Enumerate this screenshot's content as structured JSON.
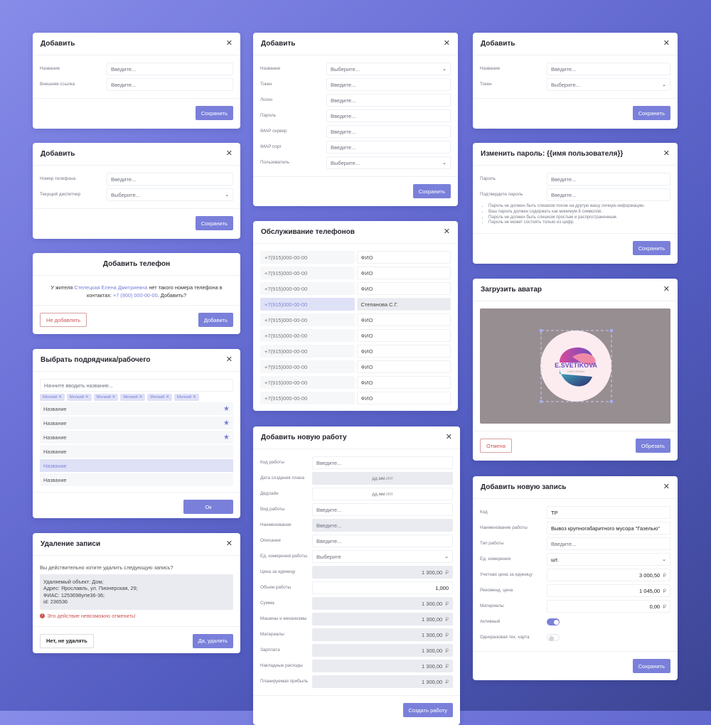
{
  "colors": {
    "accent": "#7a80da",
    "danger": "#d05454",
    "background_start": "#878ce9",
    "background_end": "#3c4593"
  },
  "dialogs": [
    {
      "id": "d1",
      "title": "Добавить",
      "close_icon": "close-icon",
      "footer_align": "end",
      "fields": [
        {
          "label": "Название",
          "placeholder": "Введите..."
        },
        {
          "label": "Внешняя ссылка",
          "placeholder": "Введите..."
        }
      ],
      "buttons": [
        {
          "label": "Сохранить",
          "style": "primary"
        }
      ]
    },
    {
      "id": "d2",
      "title": "Добавить",
      "close_icon": "close-icon",
      "footer_align": "end",
      "fields": [
        {
          "label": "Номер телефона",
          "placeholder": "Введите..."
        },
        {
          "label": "Текущий диспетчер",
          "placeholder": "Выберите...",
          "type": "select"
        }
      ],
      "buttons": [
        {
          "label": "Сохранить",
          "style": "primary"
        }
      ]
    },
    {
      "id": "d3",
      "title": "Добавить телефон",
      "centered": true,
      "message": {
        "prefix": "У жителя ",
        "resident": "Стелецкая Елена Дмитриевна",
        "middle": " нет такого номера телефона в контактах: ",
        "phone": "+7 (900) 000-00-00",
        "suffix": ". Добавить?"
      },
      "buttons": [
        {
          "label": "Не добавлять",
          "style": "danger"
        },
        {
          "label": "Добавить",
          "style": "primary"
        }
      ]
    },
    {
      "id": "d4",
      "title": "Выбрать подрядчика/рабочего",
      "close_icon": "close-icon",
      "footer_align": "end",
      "search_placeholder": "Начните вводить название...",
      "chips": [
        "Мелкий",
        "Мелкий",
        "Мелкий",
        "Мелкий",
        "Мелкий",
        "Мелкий"
      ],
      "list": [
        {
          "label": "Название",
          "starred": true
        },
        {
          "label": "Название",
          "starred": true
        },
        {
          "label": "Название",
          "starred": true
        },
        {
          "label": "Название"
        },
        {
          "label": "Название",
          "selected": true
        },
        {
          "label": "Название"
        }
      ],
      "buttons": [
        {
          "label": "Ок",
          "style": "primary",
          "wide": true
        }
      ]
    },
    {
      "id": "d5",
      "title": "Удаление записи",
      "close_icon": "close-icon",
      "question": "Вы действительно хотите удалить следующую запись?",
      "record": "Удаляемый объект: Дом;\nАдрес:  Ярославль, ул. Пионерская, 29;\nФИАС: 1253698yrte36-36;\nid: 236536",
      "warning": "Это действие невозможно отменить!",
      "buttons": [
        {
          "label": "Нет, не удалять",
          "style": "plain"
        },
        {
          "label": "Да, удалить",
          "style": "primary"
        }
      ]
    },
    {
      "id": "m1",
      "title": "Добавить",
      "close_icon": "close-icon",
      "footer_align": "end",
      "fields": [
        {
          "label": "Название",
          "placeholder": "Выберите...",
          "type": "select"
        },
        {
          "label": "Токен",
          "placeholder": "Введите..."
        },
        {
          "label": "Логин",
          "placeholder": "Введите..."
        },
        {
          "label": "Пароль",
          "placeholder": "Введите..."
        },
        {
          "label": "IMAP сервер",
          "placeholder": "Введите..."
        },
        {
          "label": "IMAP порт",
          "placeholder": "Введите..."
        },
        {
          "label": "Пользователь",
          "placeholder": "Выберите...",
          "type": "select"
        }
      ],
      "buttons": [
        {
          "label": "Сохранить",
          "style": "primary"
        }
      ]
    },
    {
      "id": "m2",
      "title": "Обслуживание телефонов",
      "close_icon": "close-icon",
      "phones": [
        {
          "phone": "+7(915)000-00-00",
          "name": "ФИО"
        },
        {
          "phone": "+7(915)000-00-00",
          "name": "ФИО"
        },
        {
          "phone": "+7(915)000-00-00",
          "name": "ФИО"
        },
        {
          "phone": "+7(915)000-00-00",
          "name": "Степанова С.Г.",
          "highlighted": true
        },
        {
          "phone": "+7(915)000-00-00",
          "name": "ФИО"
        },
        {
          "phone": "+7(915)000-00-00",
          "name": "ФИО"
        },
        {
          "phone": "+7(915)000-00-00",
          "name": "ФИО"
        },
        {
          "phone": "+7(915)000-00-00",
          "name": "ФИО"
        },
        {
          "phone": "+7(915)000-00-00",
          "name": "ФИО"
        },
        {
          "phone": "+7(915)000-00-00",
          "name": "ФИО"
        }
      ]
    },
    {
      "id": "m3",
      "title": "Добавить новую работу",
      "close_icon": "close-icon",
      "footer_align": "end",
      "fields": [
        {
          "label": "Код работы",
          "placeholder": "Введите..."
        },
        {
          "label": "Дата создания плана",
          "placeholder": "дд.мм.гггг",
          "gray": true,
          "center": true
        },
        {
          "label": "Дедлайн",
          "placeholder": "дд.мм.гггг",
          "center": true
        },
        {
          "label": "Вид работы",
          "placeholder": "Введите..."
        },
        {
          "label": "Наименование",
          "placeholder": "Введите...",
          "gray": true
        },
        {
          "label": "Описание",
          "placeholder": "Введите..."
        },
        {
          "label": "Ед. измерения работы",
          "placeholder": "Выберите",
          "type": "select"
        },
        {
          "label": "Цена за единицу",
          "value": "1 300,00",
          "currency": "₽",
          "gray": true
        },
        {
          "label": "Объем работы",
          "value": "1,000",
          "dark": true
        },
        {
          "label": "Сумма",
          "value": "1 300,00",
          "currency": "₽",
          "gray": true
        },
        {
          "label": "Машины и механизмы",
          "value": "1 300,00",
          "currency": "₽",
          "gray": true
        },
        {
          "label": "Материалы",
          "value": "1 300,00",
          "currency": "₽",
          "gray": true
        },
        {
          "label": "Зарплата",
          "value": "1 300,00",
          "currency": "₽",
          "gray": true
        },
        {
          "label": "Накладные расходы",
          "value": "1 300,00",
          "currency": "₽",
          "gray": true
        },
        {
          "label": "Планируемая прибыль",
          "value": "1 300,00",
          "currency": "₽",
          "gray": true
        }
      ],
      "buttons": [
        {
          "label": "Создать работу",
          "style": "primary"
        }
      ]
    },
    {
      "id": "r1",
      "title": "Добавить",
      "close_icon": "close-icon",
      "footer_align": "end",
      "fields": [
        {
          "label": "Название",
          "placeholder": "Введите..."
        },
        {
          "label": "Токен",
          "placeholder": "Выберите...",
          "type": "select"
        }
      ],
      "buttons": [
        {
          "label": "Сохранить",
          "style": "primary"
        }
      ]
    },
    {
      "id": "r2",
      "title": "Изменить пароль: {{имя пользователя}}",
      "close_icon": "close-icon",
      "footer_align": "end",
      "fields": [
        {
          "label": "Пароль",
          "placeholder": "Введите..."
        },
        {
          "label": "Подтвердите пароль",
          "placeholder": "Введите..."
        }
      ],
      "hints": [
        "Пароль не должен быть слишком похож на другую вашу личную информацию.",
        "Ваш пароль должен содержать как минимум 8 символов.",
        "Пароль не должен быть слишком простым и распространенным.",
        "Пароль не может состоять только из цифр."
      ],
      "buttons": [
        {
          "label": "Сохранить",
          "style": "primary"
        }
      ]
    },
    {
      "id": "r3",
      "title": "Загрузить аватар",
      "close_icon": "close-icon",
      "avatar": {
        "logo_text": "E.SVETIKOVA",
        "logo_subtext": "UI/UX DESIGN"
      },
      "buttons": [
        {
          "label": "Отмена",
          "style": "danger"
        },
        {
          "label": "Обрезать",
          "style": "primary"
        }
      ]
    },
    {
      "id": "r4",
      "title": "Добавить новую запись",
      "close_icon": "close-icon",
      "footer_align": "end",
      "fields": [
        {
          "label": "Код",
          "value": "ТР",
          "dark": true,
          "left": true
        },
        {
          "label": "Наименование работы",
          "value": "Вывоз крупногабаритного мусора \"Газелью\"",
          "dark": true,
          "left": true
        },
        {
          "label": "Тип работы",
          "placeholder": "Введите..."
        },
        {
          "label": "Ед. измерения",
          "value": "шт.",
          "type": "select",
          "dark": true
        },
        {
          "label": "Учетная цена за единицу",
          "value": "3 000,50",
          "currency": "₽",
          "dark": true
        },
        {
          "label": "Рекоменд. цена",
          "value": "1 045,00",
          "currency": "₽",
          "dark": true
        },
        {
          "label": "Материалы",
          "value": "0,00",
          "currency": "₽",
          "dark": true
        },
        {
          "label": "Активный",
          "type": "toggle",
          "on": true
        },
        {
          "label": "Одноразовая тех. карта",
          "type": "toggle",
          "on": false
        }
      ],
      "buttons": [
        {
          "label": "Сохранить",
          "style": "primary"
        }
      ]
    }
  ]
}
